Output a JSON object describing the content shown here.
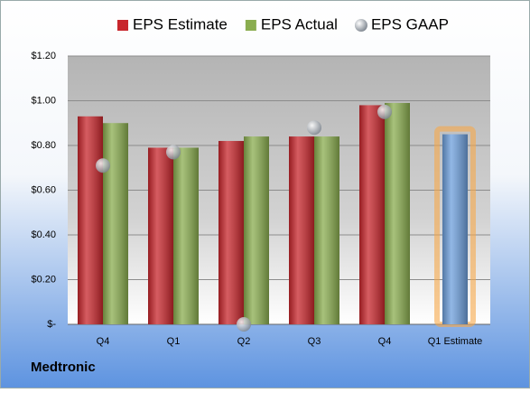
{
  "chart_data": {
    "type": "bar",
    "categories": [
      "Q4",
      "Q1",
      "Q2",
      "Q3",
      "Q4",
      "Q1 Estimate"
    ],
    "series": [
      {
        "name": "EPS Estimate",
        "color": "#c8262c",
        "values": [
          0.93,
          0.79,
          0.82,
          0.84,
          0.98,
          0.85
        ],
        "colors": [
          "#c8262c",
          "#c8262c",
          "#c8262c",
          "#c8262c",
          "#c8262c",
          "#6d9fdc"
        ]
      },
      {
        "name": "EPS Actual",
        "color": "#8aad4f",
        "values": [
          0.9,
          0.79,
          0.84,
          0.84,
          0.99,
          null
        ]
      },
      {
        "name": "EPS GAAP",
        "color": "#a9b1bb",
        "marker": "circle",
        "values": [
          0.71,
          0.77,
          0.0,
          0.88,
          0.95,
          null
        ]
      }
    ],
    "ylim": [
      0,
      1.2
    ],
    "yticks": [
      {
        "value": 0,
        "label": "$-"
      },
      {
        "value": 0.2,
        "label": "$0.20"
      },
      {
        "value": 0.4,
        "label": "$0.40"
      },
      {
        "value": 0.6,
        "label": "$0.60"
      },
      {
        "value": 0.8,
        "label": "$0.80"
      },
      {
        "value": 1.0,
        "label": "$1.00"
      },
      {
        "value": 1.2,
        "label": "$1.20"
      }
    ],
    "grid": true,
    "legend": "top",
    "footer": "Medtronic"
  }
}
